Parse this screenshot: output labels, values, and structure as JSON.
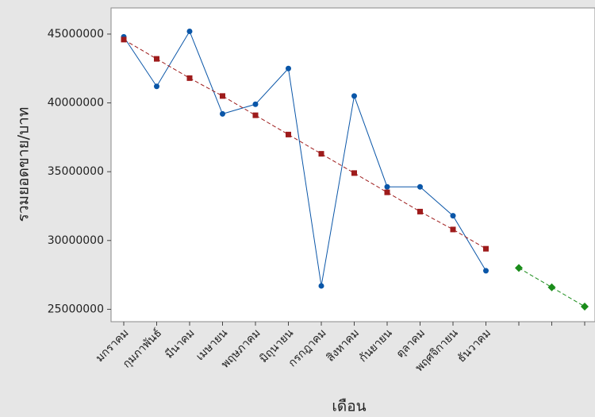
{
  "chart_data": {
    "type": "line",
    "x_label": "เดือน",
    "y_label": "รวมยอดขาย/บาท",
    "categories": [
      "มกราคม",
      "กุมภาพันธ์",
      "มีนาคม",
      "เมษายน",
      "พฤษภาคม",
      "มิถุนายน",
      "กรกฎาคม",
      "สิงหาคม",
      "กันยายน",
      "ตุลาคม",
      "พฤศจิกายน",
      "ธันวาคม",
      null,
      null,
      null
    ],
    "series": [
      {
        "color": "#0a56a8",
        "marker": "circle",
        "dashed": false,
        "values": [
          44800000,
          41200000,
          45200000,
          39200000,
          39900000,
          42500000,
          26700000,
          40500000,
          33900000,
          33900000,
          31800000,
          27800000,
          null,
          null,
          null
        ]
      },
      {
        "color": "#9e1b1b",
        "marker": "square",
        "dashed": true,
        "values": [
          44600000,
          43200000,
          41800000,
          40500000,
          39100000,
          37700000,
          36300000,
          34900000,
          33500000,
          32100000,
          30800000,
          29400000,
          null,
          null,
          null
        ]
      },
      {
        "color": "#1a8c1a",
        "marker": "diamond",
        "dashed": true,
        "values": [
          null,
          null,
          null,
          null,
          null,
          null,
          null,
          null,
          null,
          null,
          null,
          null,
          28000000,
          26600000,
          25200000
        ]
      }
    ],
    "ylim": [
      24100000,
      46900000
    ],
    "yticks": [
      25000000,
      30000000,
      35000000,
      40000000,
      45000000
    ]
  }
}
